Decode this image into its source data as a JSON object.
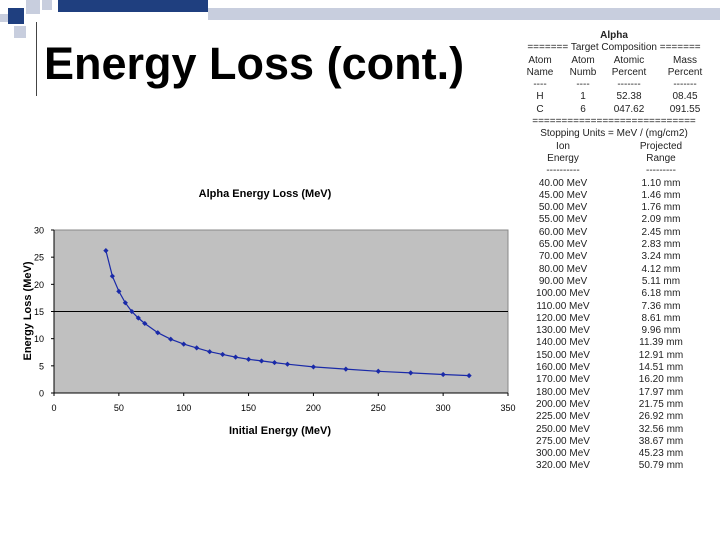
{
  "slide": {
    "title": "Energy Loss (cont.)"
  },
  "colors": {
    "bar_dark": "#1f3f7f",
    "bar_light": "#c8cede",
    "plot_bg": "#c0c0c0",
    "series": "#1a2aa8"
  },
  "chart_data": {
    "type": "scatter",
    "title": "Alpha Energy Loss (MeV)",
    "xlabel": "Initial Energy (MeV)",
    "ylabel": "Energy Loss (MeV)",
    "xlim": [
      0,
      350
    ],
    "ylim": [
      0,
      30
    ],
    "xticks": [
      "0",
      "50",
      "100",
      "150",
      "200",
      "250",
      "300",
      "350"
    ],
    "yticks": [
      "0",
      "5",
      "10",
      "15",
      "20",
      "25",
      "30"
    ],
    "x": [
      40,
      45,
      50,
      55,
      60,
      65,
      70,
      80,
      90,
      100,
      110,
      120,
      130,
      140,
      150,
      160,
      170,
      180,
      200,
      225,
      250,
      275,
      300,
      320
    ],
    "y": [
      26.2,
      21.5,
      18.7,
      16.6,
      15.0,
      13.8,
      12.8,
      11.1,
      9.9,
      9.0,
      8.3,
      7.6,
      7.1,
      6.6,
      6.2,
      5.9,
      5.6,
      5.3,
      4.8,
      4.4,
      4.0,
      3.7,
      3.4,
      3.2
    ],
    "reference_line_y": 15
  },
  "table": {
    "title": "Alpha",
    "separator1": "======= Target Composition =======",
    "header_row1": [
      "Atom",
      "Atom",
      "Atomic",
      "Mass"
    ],
    "header_row2": [
      "Name",
      "Numb",
      "Percent",
      "Percent"
    ],
    "header_row3": [
      "----",
      "----",
      "-------",
      "-------"
    ],
    "composition": [
      [
        "H",
        "1",
        "52.38",
        "08.45"
      ],
      [
        "C",
        "6",
        "047.62",
        "091.55"
      ]
    ],
    "separator2": "============================",
    "stopping_units": "Stopping Units = MeV / (mg/cm2)",
    "col_headers1": [
      "Ion",
      "Projected"
    ],
    "col_headers2": [
      "Energy",
      "Range"
    ],
    "col_dashes": [
      "----------",
      "---------"
    ],
    "rows": [
      [
        "40.00 MeV",
        "1.10 mm"
      ],
      [
        "45.00 MeV",
        "1.46 mm"
      ],
      [
        "50.00 MeV",
        "1.76 mm"
      ],
      [
        "55.00 MeV",
        "2.09 mm"
      ],
      [
        "60.00 MeV",
        "2.45 mm"
      ],
      [
        "65.00 MeV",
        "2.83 mm"
      ],
      [
        "70.00 MeV",
        "3.24 mm"
      ],
      [
        "80.00 MeV",
        "4.12 mm"
      ],
      [
        "90.00 MeV",
        "5.11 mm"
      ],
      [
        "100.00 MeV",
        "6.18 mm"
      ],
      [
        "110.00 MeV",
        "7.36 mm"
      ],
      [
        "120.00 MeV",
        "8.61 mm"
      ],
      [
        "130.00 MeV",
        "9.96 mm"
      ],
      [
        "140.00 MeV",
        "11.39 mm"
      ],
      [
        "150.00 MeV",
        "12.91 mm"
      ],
      [
        "160.00 MeV",
        "14.51 mm"
      ],
      [
        "170.00 MeV",
        "16.20 mm"
      ],
      [
        "180.00 MeV",
        "17.97 mm"
      ],
      [
        "200.00 MeV",
        "21.75 mm"
      ],
      [
        "225.00 MeV",
        "26.92 mm"
      ],
      [
        "250.00 MeV",
        "32.56 mm"
      ],
      [
        "275.00 MeV",
        "38.67 mm"
      ],
      [
        "300.00 MeV",
        "45.23 mm"
      ],
      [
        "320.00 MeV",
        "50.79 mm"
      ]
    ]
  }
}
